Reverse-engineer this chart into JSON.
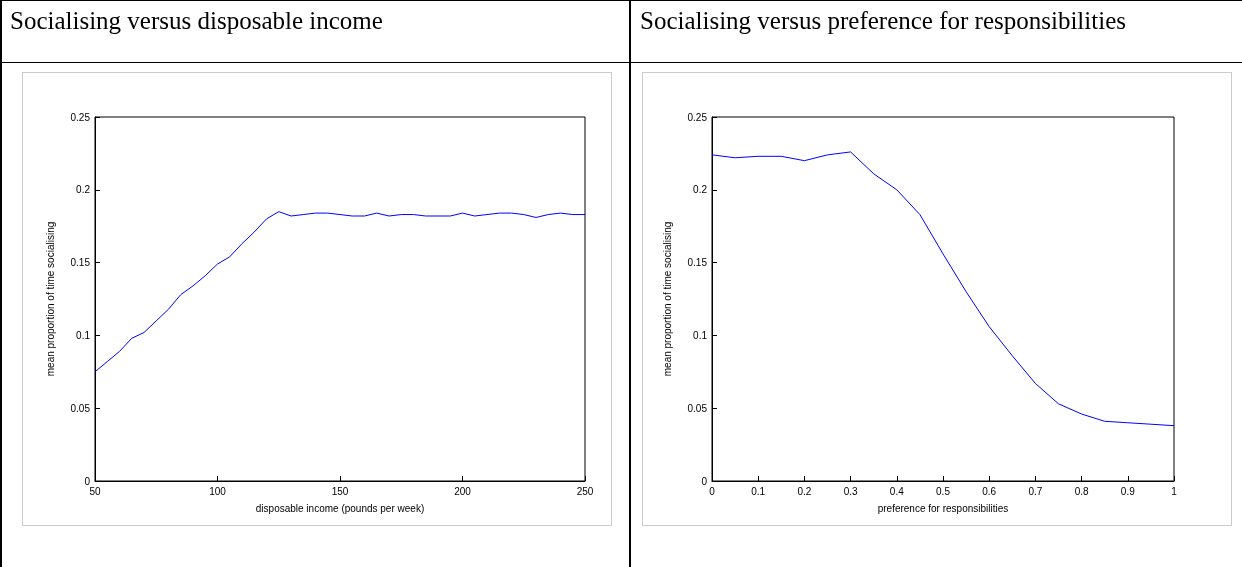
{
  "chart_data": [
    {
      "type": "line",
      "title": "Socialising versus disposable income",
      "xlabel": "disposable income (pounds per week)",
      "ylabel": "mean proportion of time socialising",
      "x": [
        50,
        55,
        60,
        65,
        70,
        75,
        80,
        85,
        90,
        95,
        100,
        105,
        110,
        115,
        120,
        125,
        130,
        135,
        140,
        145,
        150,
        155,
        160,
        165,
        170,
        175,
        180,
        185,
        190,
        195,
        200,
        205,
        210,
        215,
        220,
        225,
        230,
        235,
        240,
        245,
        250
      ],
      "series": [
        {
          "color": "#0000ff",
          "values": [
            0.075,
            0.082,
            0.089,
            0.098,
            0.102,
            0.11,
            0.118,
            0.128,
            0.134,
            0.141,
            0.149,
            0.154,
            0.163,
            0.171,
            0.18,
            0.185,
            0.182,
            0.183,
            0.184,
            0.184,
            0.183,
            0.182,
            0.182,
            0.184,
            0.182,
            0.183,
            0.183,
            0.182,
            0.182,
            0.182,
            0.184,
            0.182,
            0.183,
            0.184,
            0.184,
            0.183,
            0.181,
            0.183,
            0.184,
            0.183,
            0.183
          ]
        }
      ],
      "xlim": [
        50,
        250
      ],
      "xticks": [
        50,
        100,
        150,
        200,
        250
      ],
      "ylim": [
        0,
        0.25
      ],
      "yticks": [
        0,
        0.05,
        0.1,
        0.15,
        0.2,
        0.25
      ],
      "grid": false,
      "marker": "none",
      "line_style": "solid"
    },
    {
      "type": "line",
      "title": "Socialising versus preference for responsibilities",
      "xlabel": "preference for responsibilities",
      "ylabel": "mean proportion of time socialising",
      "x": [
        0,
        0.05,
        0.1,
        0.15,
        0.2,
        0.25,
        0.3,
        0.35,
        0.4,
        0.45,
        0.5,
        0.55,
        0.6,
        0.65,
        0.7,
        0.75,
        0.8,
        0.85,
        0.9,
        0.95,
        1
      ],
      "series": [
        {
          "color": "#0000ff",
          "values": [
            0.224,
            0.222,
            0.223,
            0.223,
            0.22,
            0.224,
            0.226,
            0.211,
            0.2,
            0.183,
            0.156,
            0.13,
            0.106,
            0.086,
            0.067,
            0.053,
            0.046,
            0.041,
            0.04,
            0.039,
            0.038
          ]
        }
      ],
      "xlim": [
        0,
        1
      ],
      "xticks": [
        0,
        0.1,
        0.2,
        0.3,
        0.4,
        0.5,
        0.6,
        0.7,
        0.8,
        0.9,
        1
      ],
      "ylim": [
        0,
        0.25
      ],
      "yticks": [
        0,
        0.05,
        0.1,
        0.15,
        0.2,
        0.25
      ],
      "grid": false,
      "marker": "none",
      "line_style": "solid"
    }
  ]
}
